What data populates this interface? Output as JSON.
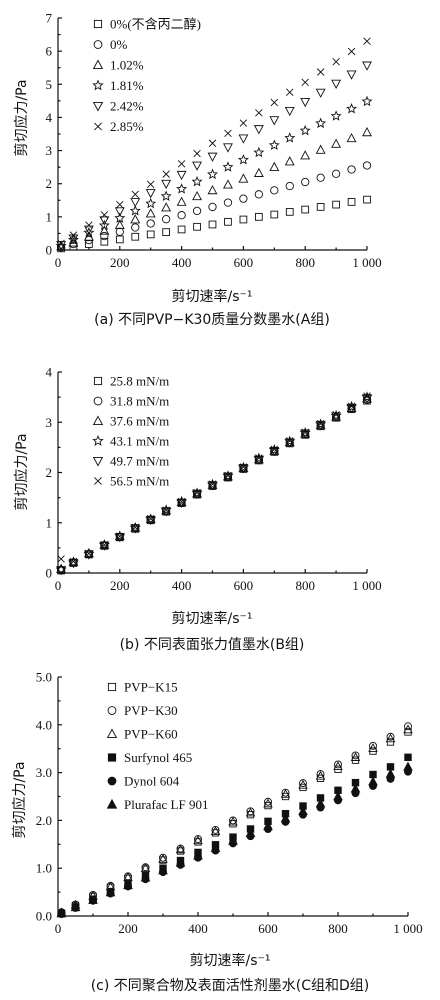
{
  "chart_data": [
    {
      "type": "scatter",
      "xlabel": "剪切速率/s⁻¹",
      "ylabel": "剪切应力/Pa",
      "caption": "(a) 不同PVP−K30质量分数墨水(A组)",
      "xlim": [
        0,
        1000
      ],
      "ylim": [
        0,
        7
      ],
      "xticks": [
        0,
        200,
        400,
        600,
        800,
        1000
      ],
      "xtick_labels": [
        "0",
        "200",
        "400",
        "600",
        "800",
        "1 000"
      ],
      "yticks": [
        0,
        1,
        2,
        3,
        4,
        5,
        6,
        7
      ],
      "ytick_labels": [
        "0",
        "1",
        "2",
        "3",
        "4",
        "5",
        "6",
        "7"
      ],
      "legend_position": "top-left",
      "x": [
        10,
        50,
        100,
        150,
        200,
        250,
        300,
        350,
        400,
        450,
        500,
        550,
        600,
        650,
        700,
        750,
        800,
        850,
        900,
        950,
        1000
      ],
      "series": [
        {
          "name": "0%(不含丙二醇)",
          "marker": "square",
          "values": [
            0.05,
            0.1,
            0.18,
            0.25,
            0.32,
            0.4,
            0.47,
            0.54,
            0.62,
            0.7,
            0.77,
            0.85,
            0.92,
            1.0,
            1.07,
            1.15,
            1.22,
            1.3,
            1.37,
            1.45,
            1.52
          ]
        },
        {
          "name": "0%",
          "marker": "circle",
          "values": [
            0.08,
            0.18,
            0.3,
            0.42,
            0.55,
            0.68,
            0.8,
            0.93,
            1.05,
            1.18,
            1.3,
            1.43,
            1.55,
            1.68,
            1.8,
            1.93,
            2.05,
            2.18,
            2.3,
            2.43,
            2.55
          ]
        },
        {
          "name": "1.02%",
          "marker": "triangle-up",
          "values": [
            0.1,
            0.22,
            0.4,
            0.58,
            0.75,
            0.92,
            1.1,
            1.28,
            1.45,
            1.62,
            1.8,
            1.97,
            2.15,
            2.32,
            2.5,
            2.67,
            2.85,
            3.02,
            3.2,
            3.37,
            3.55
          ]
        },
        {
          "name": "1.81%",
          "marker": "star",
          "values": [
            0.12,
            0.3,
            0.52,
            0.74,
            0.96,
            1.18,
            1.4,
            1.62,
            1.84,
            2.06,
            2.28,
            2.5,
            2.72,
            2.94,
            3.16,
            3.38,
            3.6,
            3.82,
            4.04,
            4.26,
            4.48
          ]
        },
        {
          "name": "2.42%",
          "marker": "triangle-down",
          "values": [
            0.15,
            0.35,
            0.62,
            0.9,
            1.17,
            1.45,
            1.72,
            2.0,
            2.27,
            2.55,
            2.82,
            3.1,
            3.37,
            3.65,
            3.92,
            4.2,
            4.47,
            4.75,
            5.02,
            5.3,
            5.57
          ]
        },
        {
          "name": "2.85%",
          "marker": "x",
          "values": [
            0.2,
            0.45,
            0.75,
            1.06,
            1.37,
            1.68,
            1.98,
            2.29,
            2.6,
            2.91,
            3.22,
            3.52,
            3.83,
            4.14,
            4.45,
            4.76,
            5.06,
            5.37,
            5.68,
            5.99,
            6.3
          ]
        }
      ]
    },
    {
      "type": "scatter",
      "xlabel": "剪切速率/s⁻¹",
      "ylabel": "剪切应力/Pa",
      "caption": "(b) 不同表面张力值墨水(B组)",
      "xlim": [
        0,
        1000
      ],
      "ylim": [
        0,
        4
      ],
      "xticks": [
        0,
        200,
        400,
        600,
        800,
        1000
      ],
      "xtick_labels": [
        "0",
        "200",
        "400",
        "600",
        "800",
        "1 000"
      ],
      "yticks": [
        0,
        1,
        2,
        3,
        4
      ],
      "ytick_labels": [
        "0",
        "1",
        "2",
        "3",
        "4"
      ],
      "legend_position": "top-left",
      "x": [
        10,
        50,
        100,
        150,
        200,
        250,
        300,
        350,
        400,
        450,
        500,
        550,
        600,
        650,
        700,
        750,
        800,
        850,
        900,
        950,
        1000
      ],
      "series": [
        {
          "name": "25.8 mN/m",
          "marker": "square",
          "values": [
            0.05,
            0.2,
            0.37,
            0.54,
            0.71,
            0.88,
            1.05,
            1.22,
            1.39,
            1.56,
            1.73,
            1.9,
            2.07,
            2.24,
            2.41,
            2.58,
            2.75,
            2.92,
            3.09,
            3.26,
            3.43
          ]
        },
        {
          "name": "31.8 mN/m",
          "marker": "circle",
          "values": [
            0.06,
            0.21,
            0.38,
            0.55,
            0.72,
            0.89,
            1.06,
            1.23,
            1.4,
            1.57,
            1.74,
            1.91,
            2.08,
            2.25,
            2.42,
            2.59,
            2.76,
            2.93,
            3.1,
            3.27,
            3.45
          ]
        },
        {
          "name": "37.6 mN/m",
          "marker": "triangle-up",
          "values": [
            0.08,
            0.22,
            0.39,
            0.56,
            0.73,
            0.9,
            1.07,
            1.24,
            1.41,
            1.58,
            1.75,
            1.92,
            2.09,
            2.26,
            2.43,
            2.6,
            2.77,
            2.94,
            3.11,
            3.28,
            3.47
          ]
        },
        {
          "name": "43.1 mN/m",
          "marker": "star",
          "values": [
            0.07,
            0.21,
            0.38,
            0.56,
            0.73,
            0.9,
            1.07,
            1.25,
            1.42,
            1.59,
            1.76,
            1.93,
            2.1,
            2.28,
            2.45,
            2.62,
            2.79,
            2.96,
            3.13,
            3.31,
            3.5
          ]
        },
        {
          "name": "49.7 mN/m",
          "marker": "triangle-down",
          "values": [
            0.06,
            0.2,
            0.37,
            0.55,
            0.72,
            0.89,
            1.06,
            1.23,
            1.4,
            1.58,
            1.75,
            1.92,
            2.09,
            2.26,
            2.43,
            2.6,
            2.78,
            2.95,
            3.12,
            3.29,
            3.48
          ]
        },
        {
          "name": "56.5 mN/m",
          "marker": "x",
          "values": [
            0.28,
            0.23,
            0.39,
            0.56,
            0.73,
            0.91,
            1.08,
            1.25,
            1.42,
            1.6,
            1.77,
            1.94,
            2.11,
            2.29,
            2.46,
            2.63,
            2.8,
            2.97,
            3.15,
            3.32,
            3.52
          ]
        }
      ]
    },
    {
      "type": "scatter",
      "xlabel": "剪切速率/s⁻¹",
      "ylabel": "剪切应力/Pa",
      "caption": "(c) 不同聚合物及表面活性剂墨水(C组和D组)",
      "xlim": [
        0,
        1000
      ],
      "ylim": [
        0,
        5
      ],
      "xticks": [
        0,
        200,
        400,
        600,
        800,
        1000
      ],
      "xtick_labels": [
        "0",
        "200",
        "400",
        "600",
        "800",
        "1 000"
      ],
      "yticks": [
        0,
        1,
        2,
        3,
        4,
        5
      ],
      "ytick_labels": [
        "0.0",
        "1.0",
        "2.0",
        "3.0",
        "4.0",
        "5.0"
      ],
      "legend_position": "top-left",
      "x": [
        10,
        50,
        100,
        150,
        200,
        250,
        300,
        350,
        400,
        450,
        500,
        550,
        600,
        650,
        700,
        750,
        800,
        850,
        900,
        950,
        1000
      ],
      "series": [
        {
          "name": "PVP−K15",
          "marker": "square-open",
          "values": [
            0.06,
            0.22,
            0.41,
            0.6,
            0.79,
            0.98,
            1.17,
            1.36,
            1.55,
            1.74,
            1.93,
            2.12,
            2.31,
            2.5,
            2.69,
            2.88,
            3.07,
            3.26,
            3.45,
            3.64,
            3.85
          ]
        },
        {
          "name": "PVP−K30",
          "marker": "circle-open",
          "values": [
            0.08,
            0.24,
            0.44,
            0.63,
            0.83,
            1.02,
            1.22,
            1.41,
            1.61,
            1.8,
            2.0,
            2.19,
            2.39,
            2.58,
            2.78,
            2.97,
            3.17,
            3.36,
            3.56,
            3.75,
            3.97
          ]
        },
        {
          "name": "PVP−K60",
          "marker": "triangle-open",
          "values": [
            0.07,
            0.23,
            0.42,
            0.61,
            0.81,
            1.0,
            1.19,
            1.39,
            1.58,
            1.77,
            1.97,
            2.16,
            2.35,
            2.55,
            2.74,
            2.93,
            3.13,
            3.32,
            3.51,
            3.71,
            3.9
          ]
        },
        {
          "name": "Surfynol 465",
          "marker": "square-filled",
          "values": [
            0.05,
            0.19,
            0.35,
            0.51,
            0.68,
            0.84,
            1.0,
            1.16,
            1.33,
            1.49,
            1.65,
            1.82,
            1.98,
            2.14,
            2.3,
            2.47,
            2.63,
            2.79,
            2.96,
            3.12,
            3.32
          ]
        },
        {
          "name": "Dynol 604",
          "marker": "circle-filled",
          "values": [
            0.04,
            0.17,
            0.32,
            0.47,
            0.62,
            0.77,
            0.92,
            1.07,
            1.22,
            1.37,
            1.52,
            1.67,
            1.82,
            1.97,
            2.12,
            2.27,
            2.42,
            2.57,
            2.72,
            2.87,
            3.02
          ]
        },
        {
          "name": "Plurafac LF 901",
          "marker": "triangle-filled",
          "values": [
            0.05,
            0.18,
            0.33,
            0.49,
            0.64,
            0.8,
            0.95,
            1.11,
            1.26,
            1.42,
            1.57,
            1.73,
            1.88,
            2.04,
            2.19,
            2.35,
            2.5,
            2.66,
            2.81,
            2.97,
            3.12
          ]
        }
      ]
    }
  ]
}
